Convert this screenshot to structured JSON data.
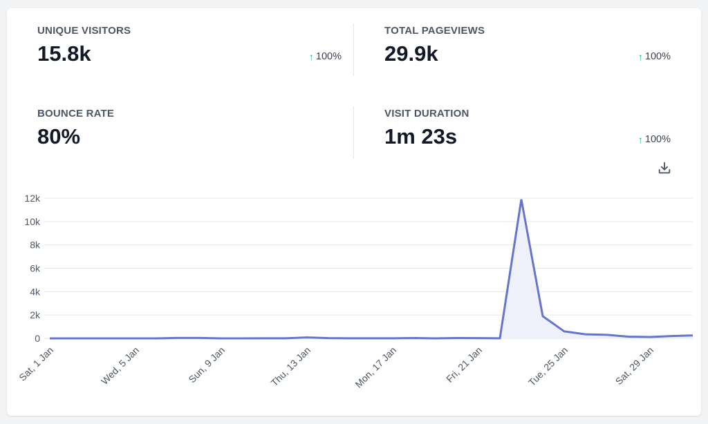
{
  "stats": [
    {
      "label": "UNIQUE VISITORS",
      "value": "15.8k",
      "change": "100%"
    },
    {
      "label": "TOTAL PAGEVIEWS",
      "value": "29.9k",
      "change": "100%"
    },
    {
      "label": "BOUNCE RATE",
      "value": "80%",
      "change": ""
    },
    {
      "label": "VISIT DURATION",
      "value": "1m 23s",
      "change": "100%"
    }
  ],
  "icons": {
    "change_arrow": "arrow-up-icon",
    "download": "download-icon"
  },
  "colors": {
    "line": "#6574cd",
    "fill": "#eef0fa",
    "up": "#10b981"
  },
  "chart_data": {
    "type": "area",
    "x": [
      "Sat, 1 Jan",
      "Sun, 2 Jan",
      "Mon, 3 Jan",
      "Tue, 4 Jan",
      "Wed, 5 Jan",
      "Thu, 6 Jan",
      "Fri, 7 Jan",
      "Sat, 8 Jan",
      "Sun, 9 Jan",
      "Mon, 10 Jan",
      "Tue, 11 Jan",
      "Wed, 12 Jan",
      "Thu, 13 Jan",
      "Fri, 14 Jan",
      "Sat, 15 Jan",
      "Sun, 16 Jan",
      "Mon, 17 Jan",
      "Tue, 18 Jan",
      "Wed, 19 Jan",
      "Thu, 20 Jan",
      "Fri, 21 Jan",
      "Sat, 22 Jan",
      "Sun, 23 Jan",
      "Mon, 24 Jan",
      "Tue, 25 Jan",
      "Wed, 26 Jan",
      "Thu, 27 Jan",
      "Fri, 28 Jan",
      "Sat, 29 Jan",
      "Sun, 30 Jan",
      "Mon, 31 Jan"
    ],
    "tick_labels": [
      "Sat, 1 Jan",
      "Wed, 5 Jan",
      "Sun, 9 Jan",
      "Thu, 13 Jan",
      "Mon, 17 Jan",
      "Fri, 21 Jan",
      "Tue, 25 Jan",
      "Sat, 29 Jan"
    ],
    "series": [
      {
        "values": [
          0,
          0,
          0,
          0,
          0,
          0,
          40,
          40,
          0,
          0,
          10,
          10,
          80,
          20,
          10,
          10,
          10,
          30,
          0,
          30,
          20,
          10,
          11900,
          1900,
          600,
          350,
          300,
          150,
          120,
          200,
          250
        ]
      }
    ],
    "ylim": [
      0,
      12000
    ],
    "yticks": [
      0,
      2000,
      4000,
      6000,
      8000,
      10000,
      12000
    ],
    "ytick_labels": [
      "0",
      "2k",
      "4k",
      "6k",
      "8k",
      "10k",
      "12k"
    ],
    "grid": true
  }
}
